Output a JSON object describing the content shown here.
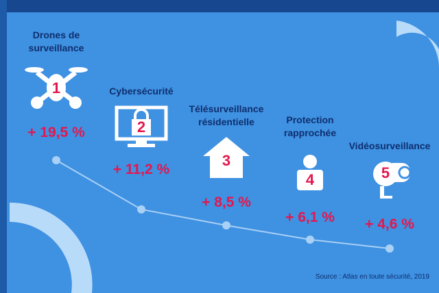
{
  "chart_data": {
    "type": "line",
    "categories": [
      "Drones de surveillance",
      "Cybersécurité",
      "Télésurveillance résidentielle",
      "Protection rapprochée",
      "Vidéosurveillance"
    ],
    "values": [
      19.5,
      11.2,
      8.5,
      6.1,
      4.6
    ],
    "value_labels": [
      "+ 19,5 %",
      "+ 11,2 %",
      "+ 8,5 %",
      "+ 6,1 %",
      "+ 4,6 %"
    ],
    "ranks": [
      1,
      2,
      3,
      4,
      5
    ],
    "color": "#a9d0f5",
    "source": "Source : Atlas en toute sécurité, 2019"
  }
}
